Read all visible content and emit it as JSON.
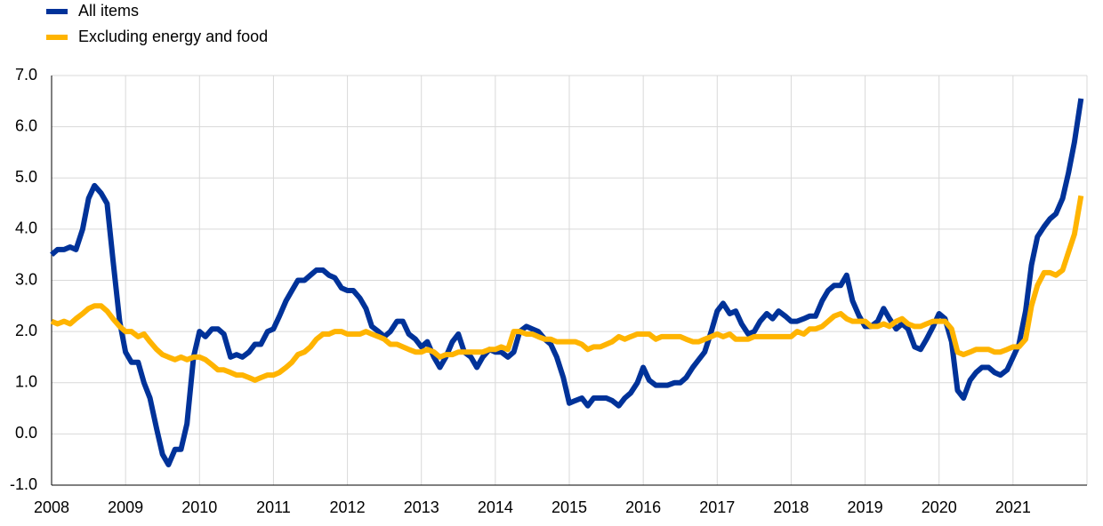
{
  "chart_data": {
    "type": "line",
    "legend": "top-left",
    "grid": true,
    "xlim": [
      2008,
      2022
    ],
    "xticks": [
      2008,
      2009,
      2010,
      2011,
      2012,
      2013,
      2014,
      2015,
      2016,
      2017,
      2018,
      2019,
      2020,
      2021
    ],
    "ylim": [
      -1,
      7
    ],
    "yticks": [
      {
        "value": -1,
        "label": "-1.0"
      },
      {
        "value": 0,
        "label": "0.0"
      },
      {
        "value": 1,
        "label": "1.0"
      },
      {
        "value": 2,
        "label": "2.0"
      },
      {
        "value": 3,
        "label": "3.0"
      },
      {
        "value": 4,
        "label": "4.0"
      },
      {
        "value": 5,
        "label": "5.0"
      },
      {
        "value": 6,
        "label": "6.0"
      },
      {
        "value": 7,
        "label": "7.0"
      }
    ],
    "x": [
      2008,
      2008.08,
      2008.17,
      2008.25,
      2008.33,
      2008.42,
      2008.5,
      2008.58,
      2008.67,
      2008.75,
      2008.83,
      2008.92,
      2009,
      2009.08,
      2009.17,
      2009.25,
      2009.33,
      2009.42,
      2009.5,
      2009.58,
      2009.67,
      2009.75,
      2009.83,
      2009.92,
      2010,
      2010.08,
      2010.17,
      2010.25,
      2010.33,
      2010.42,
      2010.5,
      2010.58,
      2010.67,
      2010.75,
      2010.83,
      2010.92,
      2011,
      2011.08,
      2011.17,
      2011.25,
      2011.33,
      2011.42,
      2011.5,
      2011.58,
      2011.67,
      2011.75,
      2011.83,
      2011.92,
      2012,
      2012.08,
      2012.17,
      2012.25,
      2012.33,
      2012.42,
      2012.5,
      2012.58,
      2012.67,
      2012.75,
      2012.83,
      2012.92,
      2013,
      2013.08,
      2013.17,
      2013.25,
      2013.33,
      2013.42,
      2013.5,
      2013.58,
      2013.67,
      2013.75,
      2013.83,
      2013.92,
      2014,
      2014.08,
      2014.17,
      2014.25,
      2014.33,
      2014.42,
      2014.5,
      2014.58,
      2014.67,
      2014.75,
      2014.83,
      2014.92,
      2015,
      2015.08,
      2015.17,
      2015.25,
      2015.33,
      2015.42,
      2015.5,
      2015.58,
      2015.67,
      2015.75,
      2015.83,
      2015.92,
      2016,
      2016.08,
      2016.17,
      2016.25,
      2016.33,
      2016.42,
      2016.5,
      2016.58,
      2016.67,
      2016.75,
      2016.83,
      2016.92,
      2017,
      2017.08,
      2017.17,
      2017.25,
      2017.33,
      2017.42,
      2017.5,
      2017.58,
      2017.67,
      2017.75,
      2017.83,
      2017.92,
      2018,
      2018.08,
      2018.17,
      2018.25,
      2018.33,
      2018.42,
      2018.5,
      2018.58,
      2018.67,
      2018.75,
      2018.83,
      2018.92,
      2019,
      2019.08,
      2019.17,
      2019.25,
      2019.33,
      2019.42,
      2019.5,
      2019.58,
      2019.67,
      2019.75,
      2019.83,
      2019.92,
      2020,
      2020.08,
      2020.17,
      2020.25,
      2020.33,
      2020.42,
      2020.5,
      2020.58,
      2020.67,
      2020.75,
      2020.83,
      2020.92,
      2021,
      2021.08,
      2021.17,
      2021.25,
      2021.33,
      2021.42,
      2021.5,
      2021.58,
      2021.67,
      2021.75,
      2021.83,
      2021.92
    ],
    "series": [
      {
        "name": "All items",
        "color": "#003299",
        "values": [
          3.5,
          3.6,
          3.6,
          3.65,
          3.6,
          4.0,
          4.6,
          4.85,
          4.7,
          4.5,
          3.4,
          2.2,
          1.6,
          1.4,
          1.4,
          1.0,
          0.7,
          0.1,
          -0.4,
          -0.6,
          -0.3,
          -0.3,
          0.2,
          1.5,
          2.0,
          1.9,
          2.05,
          2.05,
          1.95,
          1.5,
          1.55,
          1.5,
          1.6,
          1.75,
          1.75,
          2.0,
          2.05,
          2.3,
          2.6,
          2.8,
          3.0,
          3.0,
          3.1,
          3.2,
          3.2,
          3.1,
          3.05,
          2.85,
          2.8,
          2.8,
          2.65,
          2.45,
          2.1,
          2.0,
          1.9,
          2.0,
          2.2,
          2.2,
          1.95,
          1.85,
          1.7,
          1.8,
          1.5,
          1.3,
          1.5,
          1.8,
          1.95,
          1.6,
          1.5,
          1.3,
          1.5,
          1.65,
          1.6,
          1.6,
          1.5,
          1.6,
          2.0,
          2.1,
          2.05,
          2.0,
          1.85,
          1.75,
          1.5,
          1.1,
          0.6,
          0.65,
          0.7,
          0.55,
          0.7,
          0.7,
          0.7,
          0.65,
          0.55,
          0.7,
          0.8,
          1.0,
          1.3,
          1.05,
          0.95,
          0.95,
          0.95,
          1.0,
          1.0,
          1.1,
          1.3,
          1.45,
          1.6,
          2.0,
          2.4,
          2.55,
          2.35,
          2.4,
          2.15,
          1.95,
          2.0,
          2.2,
          2.35,
          2.25,
          2.4,
          2.3,
          2.2,
          2.2,
          2.25,
          2.3,
          2.3,
          2.6,
          2.8,
          2.9,
          2.9,
          3.1,
          2.6,
          2.3,
          2.1,
          2.1,
          2.2,
          2.45,
          2.25,
          2.05,
          2.15,
          2.05,
          1.7,
          1.65,
          1.85,
          2.1,
          2.35,
          2.25,
          1.8,
          0.85,
          0.7,
          1.05,
          1.2,
          1.3,
          1.3,
          1.2,
          1.15,
          1.25,
          1.5,
          1.75,
          2.4,
          3.3,
          3.85,
          4.05,
          4.2,
          4.3,
          4.6,
          5.1,
          5.7,
          6.55
        ]
      },
      {
        "name": "Excluding energy and food",
        "color": "#ffb400",
        "values": [
          2.2,
          2.15,
          2.2,
          2.15,
          2.25,
          2.35,
          2.45,
          2.5,
          2.5,
          2.4,
          2.25,
          2.1,
          2.0,
          2.0,
          1.9,
          1.95,
          1.8,
          1.65,
          1.55,
          1.5,
          1.45,
          1.5,
          1.45,
          1.5,
          1.5,
          1.45,
          1.35,
          1.25,
          1.25,
          1.2,
          1.15,
          1.15,
          1.1,
          1.05,
          1.1,
          1.15,
          1.15,
          1.2,
          1.3,
          1.4,
          1.55,
          1.6,
          1.7,
          1.85,
          1.95,
          1.95,
          2.0,
          2.0,
          1.95,
          1.95,
          1.95,
          2.0,
          1.95,
          1.9,
          1.85,
          1.75,
          1.75,
          1.7,
          1.65,
          1.6,
          1.6,
          1.65,
          1.6,
          1.5,
          1.55,
          1.55,
          1.6,
          1.6,
          1.6,
          1.6,
          1.6,
          1.65,
          1.65,
          1.7,
          1.65,
          2.0,
          2.0,
          1.95,
          1.95,
          1.9,
          1.85,
          1.85,
          1.8,
          1.8,
          1.8,
          1.8,
          1.75,
          1.65,
          1.7,
          1.7,
          1.75,
          1.8,
          1.9,
          1.85,
          1.9,
          1.95,
          1.95,
          1.95,
          1.85,
          1.9,
          1.9,
          1.9,
          1.9,
          1.85,
          1.8,
          1.8,
          1.85,
          1.9,
          1.95,
          1.9,
          1.95,
          1.85,
          1.85,
          1.85,
          1.9,
          1.9,
          1.9,
          1.9,
          1.9,
          1.9,
          1.9,
          2.0,
          1.95,
          2.05,
          2.05,
          2.1,
          2.2,
          2.3,
          2.35,
          2.25,
          2.2,
          2.2,
          2.2,
          2.1,
          2.1,
          2.15,
          2.1,
          2.2,
          2.25,
          2.15,
          2.1,
          2.1,
          2.15,
          2.2,
          2.2,
          2.2,
          2.05,
          1.6,
          1.55,
          1.6,
          1.65,
          1.65,
          1.65,
          1.6,
          1.6,
          1.65,
          1.7,
          1.7,
          1.85,
          2.5,
          2.9,
          3.15,
          3.15,
          3.1,
          3.2,
          3.55,
          3.9,
          4.65
        ]
      }
    ]
  }
}
